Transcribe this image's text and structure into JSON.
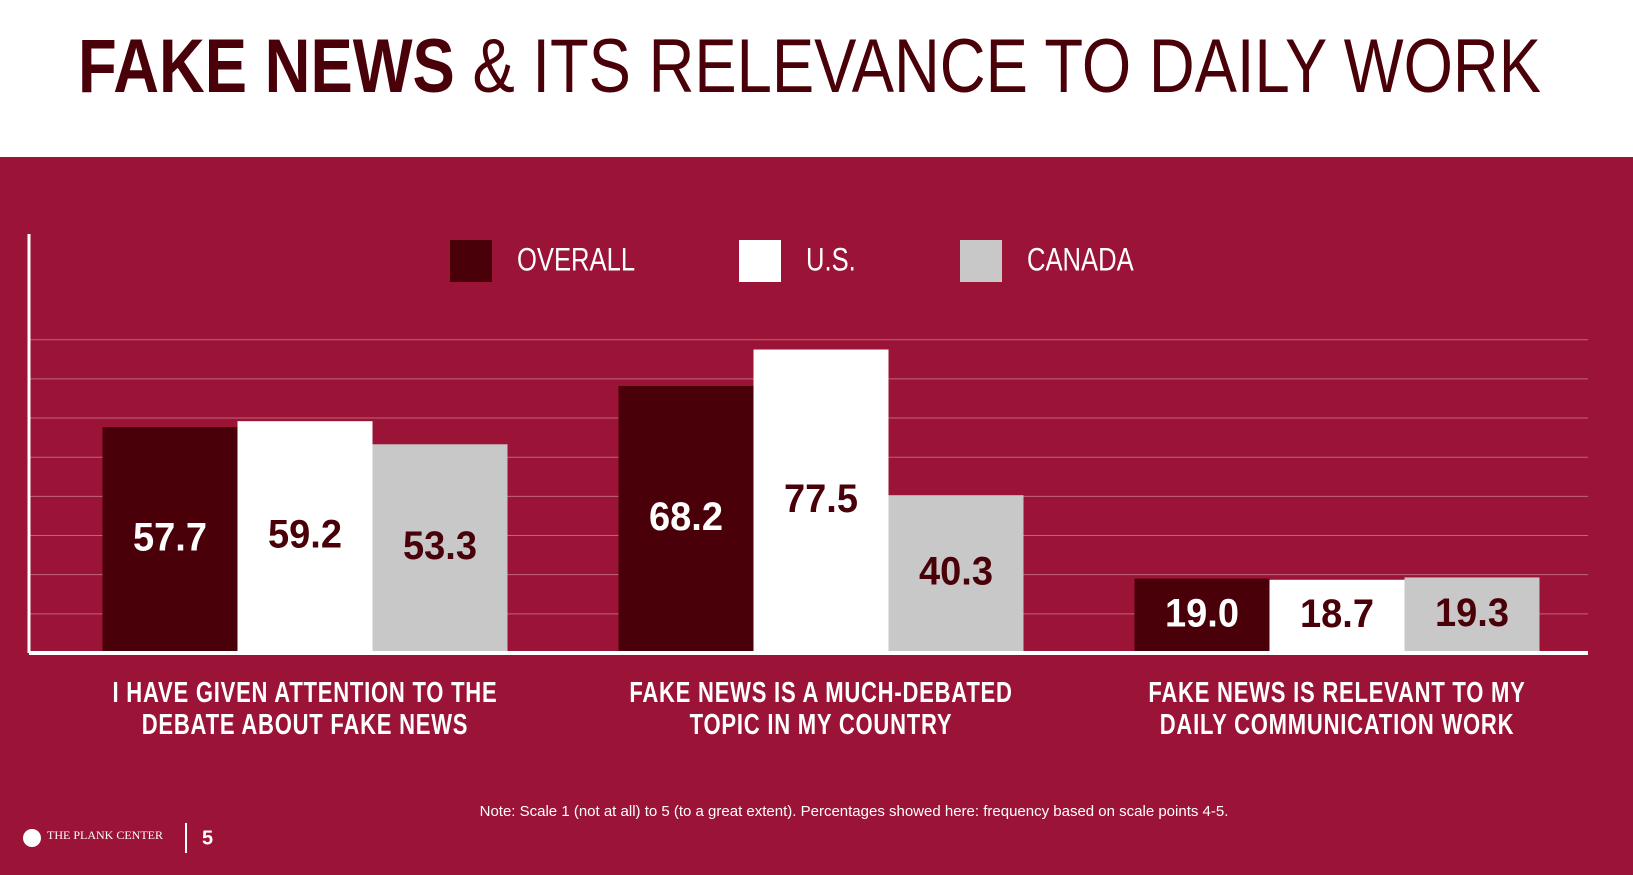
{
  "chart_data": {
    "type": "bar",
    "title_bold": "FAKE NEWS",
    "title_rest": "& ITS RELEVANCE TO DAILY WORK",
    "categories": [
      "I HAVE GIVEN ATTENTION TO THE DEBATE ABOUT FAKE NEWS",
      "FAKE NEWS IS A MUCH-DEBATED TOPIC IN MY COUNTRY",
      "FAKE NEWS IS RELEVANT TO MY DAILY COMMUNICATION WORK"
    ],
    "series": [
      {
        "name": "OVERALL",
        "color": "#4a0008",
        "label_color": "#ffffff",
        "values": [
          57.7,
          68.2,
          19.0
        ],
        "value_labels": [
          "57.7",
          "68.2",
          "19.0"
        ]
      },
      {
        "name": "U.S.",
        "color": "#ffffff",
        "label_color": "#4a0008",
        "values": [
          59.2,
          77.5,
          18.7
        ],
        "value_labels": [
          "59.2",
          "77.5",
          "18.7"
        ]
      },
      {
        "name": "CANADA",
        "color": "#c8c8c8",
        "label_color": "#4a0008",
        "values": [
          53.3,
          40.3,
          19.3
        ],
        "value_labels": [
          "53.3",
          "40.3",
          "19.3"
        ]
      }
    ],
    "ylim": [
      0,
      107
    ],
    "yticks": [
      0,
      10,
      20,
      30,
      40,
      50,
      60,
      70,
      80
    ],
    "grid": true,
    "note": "Note: Scale 1 (not at all) to 5 (to a great extent). Percentages showed here: frequency based on scale points 4-5.",
    "footer_logo": "THE PLANK CENTER",
    "page_number": "5"
  }
}
